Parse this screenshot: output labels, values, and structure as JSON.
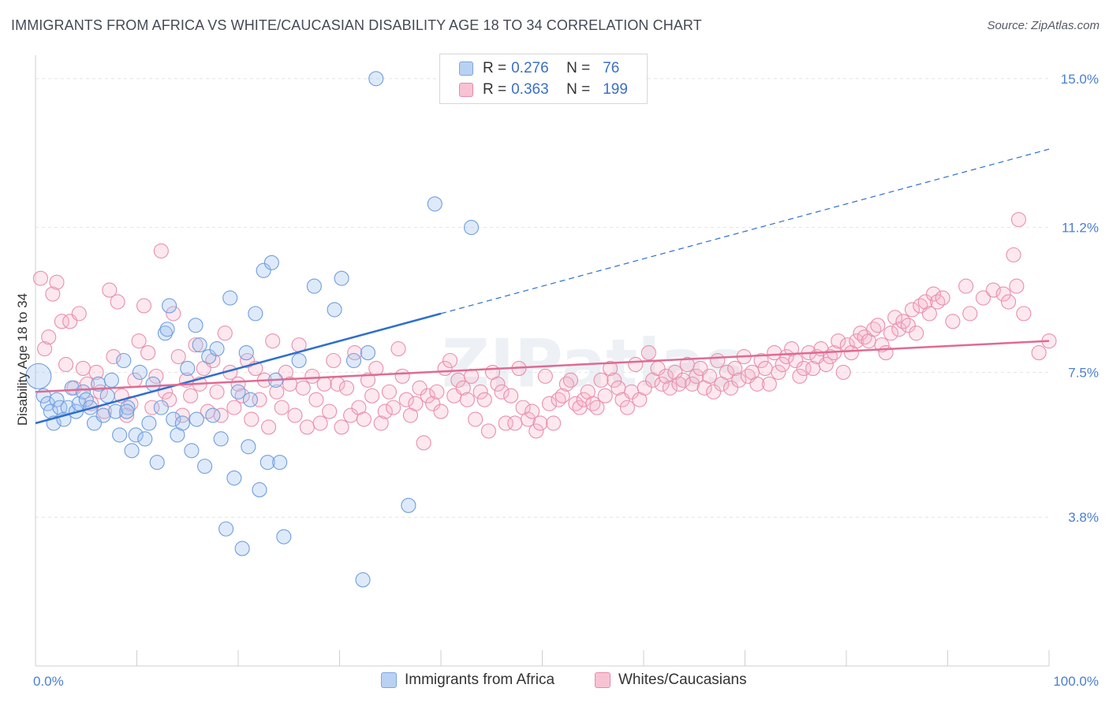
{
  "title": "IMMIGRANTS FROM AFRICA VS WHITE/CAUCASIAN DISABILITY AGE 18 TO 34 CORRELATION CHART",
  "source": "Source: ZipAtlas.com",
  "watermark": "ZIPatlas",
  "legend": {
    "r_label": "R =",
    "n_label": "N =",
    "rows": [
      {
        "r": "0.276",
        "n": "76",
        "fill": "#b9d2f3",
        "stroke": "#7ea6e0"
      },
      {
        "r": "0.363",
        "n": "199",
        "fill": "#f7c3d3",
        "stroke": "#e88aa8"
      }
    ]
  },
  "bottom_legend": [
    {
      "label": "Immigrants from Africa",
      "fill": "#b9d2f3",
      "stroke": "#7ea6e0"
    },
    {
      "label": "Whites/Caucasians",
      "fill": "#f7c3d3",
      "stroke": "#e88aa8"
    }
  ],
  "colors": {
    "blue_fill": "rgba(160,195,240,0.35)",
    "blue_stroke": "#6f9ede",
    "blue_line": "#2e6fce",
    "pink_fill": "rgba(245,180,200,0.30)",
    "pink_stroke": "#e98fad",
    "pink_line": "#e06a93",
    "grid": "#e3e3e3",
    "tick": "#4a7fd0"
  },
  "chart_data": {
    "type": "scatter",
    "title": "IMMIGRANTS FROM AFRICA VS WHITE/CAUCASIAN DISABILITY AGE 18 TO 34 CORRELATION CHART",
    "xlabel": "",
    "ylabel": "Disability Age 18 to 34",
    "xlim": [
      0,
      100
    ],
    "ylim": [
      0,
      15.6
    ],
    "x_ticks": [
      "0.0%",
      "100.0%"
    ],
    "y_ticks": [
      {
        "value": 3.8,
        "label": "3.8%"
      },
      {
        "value": 7.5,
        "label": "7.5%"
      },
      {
        "value": 11.2,
        "label": "11.2%"
      },
      {
        "value": 15.0,
        "label": "15.0%"
      }
    ],
    "grid": true,
    "series": [
      {
        "name": "Immigrants from Africa",
        "r": 0.276,
        "n": 76,
        "trend": {
          "x0": 0,
          "y0": 6.2,
          "x1": 100,
          "y1": 13.2,
          "solid_until": 40
        },
        "points": [
          [
            0.3,
            7.4,
            "l"
          ],
          [
            0.8,
            6.9
          ],
          [
            1.2,
            6.7
          ],
          [
            1.5,
            6.5
          ],
          [
            1.8,
            6.2
          ],
          [
            2.1,
            6.8
          ],
          [
            2.4,
            6.6
          ],
          [
            2.8,
            6.3
          ],
          [
            3.2,
            6.6
          ],
          [
            3.6,
            7.1
          ],
          [
            4.0,
            6.5
          ],
          [
            4.3,
            6.7
          ],
          [
            4.7,
            7.0
          ],
          [
            5.0,
            6.8
          ],
          [
            5.4,
            6.6
          ],
          [
            5.8,
            6.2
          ],
          [
            6.2,
            7.2
          ],
          [
            6.7,
            6.4
          ],
          [
            7.1,
            6.9
          ],
          [
            7.5,
            7.3
          ],
          [
            7.9,
            6.5
          ],
          [
            8.3,
            5.9
          ],
          [
            8.7,
            7.8
          ],
          [
            9.1,
            6.6
          ],
          [
            9.5,
            5.5
          ],
          [
            9.9,
            5.9
          ],
          [
            10.3,
            7.5
          ],
          [
            10.8,
            5.8
          ],
          [
            11.2,
            6.2
          ],
          [
            11.6,
            7.2
          ],
          [
            12.0,
            5.2
          ],
          [
            12.4,
            6.6
          ],
          [
            12.8,
            8.5
          ],
          [
            13.2,
            9.2
          ],
          [
            13.6,
            6.3
          ],
          [
            14.0,
            5.9
          ],
          [
            14.5,
            6.2
          ],
          [
            15.0,
            7.6
          ],
          [
            15.4,
            5.5
          ],
          [
            15.8,
            8.7
          ],
          [
            16.2,
            8.2
          ],
          [
            16.7,
            5.1
          ],
          [
            17.1,
            7.9
          ],
          [
            17.5,
            6.4
          ],
          [
            17.9,
            8.1
          ],
          [
            18.3,
            5.8
          ],
          [
            18.8,
            3.5
          ],
          [
            19.2,
            9.4
          ],
          [
            19.6,
            4.8
          ],
          [
            20.0,
            7.0
          ],
          [
            20.4,
            3.0
          ],
          [
            20.8,
            8.0
          ],
          [
            21.2,
            6.8
          ],
          [
            21.7,
            9.0
          ],
          [
            22.1,
            4.5
          ],
          [
            22.5,
            10.1
          ],
          [
            22.9,
            5.2
          ],
          [
            23.3,
            10.3
          ],
          [
            23.7,
            7.3
          ],
          [
            24.1,
            5.2
          ],
          [
            24.5,
            3.3
          ],
          [
            26.0,
            7.8
          ],
          [
            27.5,
            9.7
          ],
          [
            29.5,
            9.1
          ],
          [
            30.2,
            9.9
          ],
          [
            31.4,
            7.8
          ],
          [
            32.3,
            2.2
          ],
          [
            32.8,
            8.0
          ],
          [
            33.6,
            15.0
          ],
          [
            36.8,
            4.1
          ],
          [
            39.4,
            11.8
          ],
          [
            43.0,
            11.2
          ],
          [
            13.0,
            8.6
          ],
          [
            15.9,
            6.3
          ],
          [
            21.0,
            5.6
          ],
          [
            9.0,
            6.5
          ]
        ]
      },
      {
        "name": "Whites/Caucasians",
        "r": 0.363,
        "n": 199,
        "trend": {
          "x0": 0,
          "y0": 7.0,
          "x1": 100,
          "y1": 8.3
        },
        "points": [
          [
            0.5,
            9.9
          ],
          [
            0.9,
            8.1
          ],
          [
            1.3,
            8.4
          ],
          [
            1.7,
            9.5
          ],
          [
            2.1,
            9.8
          ],
          [
            2.6,
            8.8
          ],
          [
            3.0,
            7.7
          ],
          [
            3.4,
            8.8
          ],
          [
            3.8,
            7.1
          ],
          [
            4.3,
            9.0
          ],
          [
            4.7,
            7.6
          ],
          [
            5.1,
            7.2
          ],
          [
            5.5,
            6.7
          ],
          [
            6.0,
            7.5
          ],
          [
            6.4,
            7.0
          ],
          [
            6.8,
            6.5
          ],
          [
            7.3,
            9.6
          ],
          [
            7.7,
            7.9
          ],
          [
            8.1,
            9.3
          ],
          [
            8.5,
            6.9
          ],
          [
            9.0,
            6.4
          ],
          [
            9.4,
            6.7
          ],
          [
            9.8,
            7.3
          ],
          [
            10.2,
            8.3
          ],
          [
            10.7,
            9.2
          ],
          [
            11.1,
            8.0
          ],
          [
            11.5,
            6.6
          ],
          [
            11.9,
            7.4
          ],
          [
            12.4,
            10.6
          ],
          [
            12.8,
            7.0
          ],
          [
            13.2,
            6.8
          ],
          [
            13.6,
            9.0
          ],
          [
            14.1,
            7.9
          ],
          [
            14.5,
            6.4
          ],
          [
            14.9,
            7.3
          ],
          [
            15.3,
            6.9
          ],
          [
            15.8,
            8.2
          ],
          [
            16.2,
            7.2
          ],
          [
            16.6,
            7.6
          ],
          [
            17.0,
            6.5
          ],
          [
            17.5,
            7.8
          ],
          [
            17.9,
            7.0
          ],
          [
            18.3,
            6.4
          ],
          [
            18.7,
            8.5
          ],
          [
            19.2,
            7.5
          ],
          [
            19.6,
            6.6
          ],
          [
            20.0,
            7.2
          ],
          [
            20.4,
            6.9
          ],
          [
            20.9,
            7.8
          ],
          [
            21.3,
            6.3
          ],
          [
            21.7,
            7.6
          ],
          [
            22.1,
            6.8
          ],
          [
            22.6,
            7.3
          ],
          [
            23.0,
            6.1
          ],
          [
            23.4,
            8.3
          ],
          [
            23.8,
            7.0
          ],
          [
            24.3,
            6.6
          ],
          [
            24.7,
            7.5
          ],
          [
            25.1,
            7.2
          ],
          [
            25.6,
            6.4
          ],
          [
            26.0,
            8.2
          ],
          [
            26.4,
            7.1
          ],
          [
            26.8,
            6.1
          ],
          [
            27.3,
            7.4
          ],
          [
            27.7,
            6.8
          ],
          [
            28.1,
            6.2
          ],
          [
            28.5,
            7.2
          ],
          [
            29.0,
            6.5
          ],
          [
            29.4,
            7.8
          ],
          [
            29.8,
            7.2
          ],
          [
            30.2,
            6.1
          ],
          [
            30.7,
            7.1
          ],
          [
            31.1,
            6.4
          ],
          [
            31.5,
            8.0
          ],
          [
            31.9,
            6.6
          ],
          [
            32.4,
            6.3
          ],
          [
            32.8,
            7.3
          ],
          [
            33.2,
            6.9
          ],
          [
            33.6,
            7.6
          ],
          [
            34.1,
            6.2
          ],
          [
            34.5,
            6.5
          ],
          [
            34.9,
            7.0
          ],
          [
            35.3,
            6.6
          ],
          [
            35.8,
            8.1
          ],
          [
            36.2,
            7.4
          ],
          [
            36.6,
            6.8
          ],
          [
            37.0,
            6.4
          ],
          [
            37.5,
            6.7
          ],
          [
            37.9,
            7.1
          ],
          [
            38.3,
            5.7
          ],
          [
            38.7,
            6.9
          ],
          [
            39.2,
            6.7
          ],
          [
            39.6,
            7.0
          ],
          [
            40.0,
            6.5
          ],
          [
            40.4,
            7.6
          ],
          [
            40.9,
            7.8
          ],
          [
            41.3,
            6.9
          ],
          [
            41.7,
            7.3
          ],
          [
            42.2,
            7.1
          ],
          [
            42.6,
            6.8
          ],
          [
            43.0,
            7.4
          ],
          [
            43.4,
            6.3
          ],
          [
            43.9,
            7.0
          ],
          [
            44.3,
            6.8
          ],
          [
            44.7,
            6.0
          ],
          [
            45.1,
            7.5
          ],
          [
            45.6,
            7.2
          ],
          [
            46.0,
            7.0
          ],
          [
            46.4,
            6.2
          ],
          [
            46.9,
            6.9
          ],
          [
            47.3,
            6.2
          ],
          [
            47.7,
            7.6
          ],
          [
            48.1,
            6.6
          ],
          [
            48.6,
            6.3
          ],
          [
            49.0,
            6.5
          ],
          [
            49.4,
            6.0
          ],
          [
            49.8,
            6.2
          ],
          [
            50.3,
            7.4
          ],
          [
            50.7,
            6.7
          ],
          [
            51.1,
            6.2
          ],
          [
            51.6,
            6.8
          ],
          [
            52.0,
            6.9
          ],
          [
            52.4,
            7.2
          ],
          [
            52.8,
            7.3
          ],
          [
            53.3,
            6.7
          ],
          [
            53.7,
            6.6
          ],
          [
            54.1,
            6.8
          ],
          [
            54.5,
            7.0
          ],
          [
            55.0,
            6.7
          ],
          [
            55.4,
            6.6
          ],
          [
            55.8,
            7.3
          ],
          [
            56.2,
            6.9
          ],
          [
            56.7,
            7.6
          ],
          [
            57.1,
            7.3
          ],
          [
            57.5,
            7.1
          ],
          [
            57.9,
            6.8
          ],
          [
            58.4,
            6.6
          ],
          [
            58.8,
            7.0
          ],
          [
            59.2,
            7.7
          ],
          [
            59.6,
            6.8
          ],
          [
            60.1,
            7.1
          ],
          [
            60.5,
            8.0
          ],
          [
            60.9,
            7.3
          ],
          [
            61.4,
            7.6
          ],
          [
            61.8,
            7.2
          ],
          [
            62.2,
            7.4
          ],
          [
            62.6,
            7.1
          ],
          [
            63.1,
            7.5
          ],
          [
            63.5,
            7.2
          ],
          [
            63.9,
            7.3
          ],
          [
            64.3,
            7.7
          ],
          [
            64.8,
            7.2
          ],
          [
            65.2,
            7.4
          ],
          [
            65.6,
            7.6
          ],
          [
            66.0,
            7.1
          ],
          [
            66.5,
            7.4
          ],
          [
            66.9,
            7.0
          ],
          [
            67.3,
            7.8
          ],
          [
            67.7,
            7.2
          ],
          [
            68.2,
            7.5
          ],
          [
            68.6,
            7.1
          ],
          [
            69.0,
            7.6
          ],
          [
            69.4,
            7.3
          ],
          [
            69.9,
            7.9
          ],
          [
            70.3,
            7.4
          ],
          [
            70.7,
            7.5
          ],
          [
            71.2,
            7.2
          ],
          [
            71.6,
            7.8
          ],
          [
            72.0,
            7.6
          ],
          [
            72.4,
            7.2
          ],
          [
            72.9,
            8.0
          ],
          [
            73.3,
            7.5
          ],
          [
            73.7,
            7.7
          ],
          [
            74.1,
            7.9
          ],
          [
            74.6,
            8.1
          ],
          [
            75.0,
            7.8
          ],
          [
            75.4,
            7.4
          ],
          [
            75.8,
            7.6
          ],
          [
            76.3,
            8.0
          ],
          [
            76.7,
            7.6
          ],
          [
            77.1,
            7.9
          ],
          [
            77.5,
            8.1
          ],
          [
            78.0,
            7.7
          ],
          [
            78.4,
            7.9
          ],
          [
            78.8,
            8.0
          ],
          [
            79.2,
            8.3
          ],
          [
            79.7,
            7.5
          ],
          [
            80.1,
            8.2
          ],
          [
            80.5,
            8.0
          ],
          [
            81.0,
            8.3
          ],
          [
            81.4,
            8.5
          ],
          [
            81.8,
            8.4
          ],
          [
            82.2,
            8.3
          ],
          [
            82.7,
            8.6
          ],
          [
            83.1,
            8.7
          ],
          [
            83.5,
            8.2
          ],
          [
            83.9,
            8.0
          ],
          [
            84.4,
            8.5
          ],
          [
            84.8,
            8.9
          ],
          [
            85.2,
            8.6
          ],
          [
            85.6,
            8.8
          ],
          [
            86.1,
            8.7
          ],
          [
            86.5,
            9.1
          ],
          [
            86.9,
            8.5
          ],
          [
            87.3,
            9.2
          ],
          [
            87.8,
            9.3
          ],
          [
            88.2,
            9.0
          ],
          [
            88.6,
            9.5
          ],
          [
            89.0,
            9.3
          ],
          [
            89.5,
            9.4
          ]
        ]
      }
    ]
  },
  "extra_pink_points": [
    [
      97,
      11.4
    ],
    [
      96.5,
      10.5
    ],
    [
      94.5,
      9.6
    ],
    [
      95.5,
      9.5
    ],
    [
      96,
      9.3
    ],
    [
      93.5,
      9.4
    ],
    [
      92.2,
      9.0
    ],
    [
      91.8,
      9.7
    ],
    [
      97.5,
      9.0
    ],
    [
      90.5,
      8.8
    ],
    [
      99.0,
      8.0
    ],
    [
      100,
      8.3
    ],
    [
      96.8,
      9.7
    ]
  ]
}
